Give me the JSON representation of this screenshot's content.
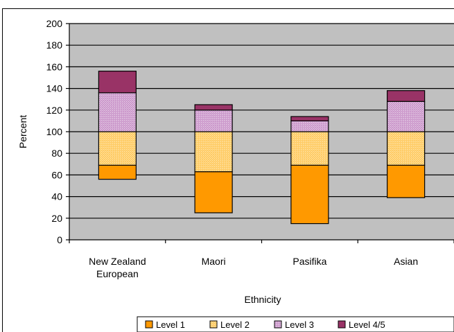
{
  "chart_data": {
    "type": "bar",
    "stacked": true,
    "floating": true,
    "categories": [
      "New Zealand European",
      "Maori",
      "Pasifika",
      "Asian"
    ],
    "category_lines": [
      [
        "New Zealand",
        "European"
      ],
      [
        "Maori"
      ],
      [
        "Pasifika"
      ],
      [
        "Asian"
      ]
    ],
    "base": [
      56,
      25,
      15,
      39
    ],
    "series": [
      {
        "name": "Level 1",
        "values": [
          13,
          38,
          54,
          30
        ],
        "color": "#FF9900"
      },
      {
        "name": "Level 2",
        "values": [
          31,
          37,
          31,
          31
        ],
        "color": "#FFCC66"
      },
      {
        "name": "Level 3",
        "values": [
          36,
          20,
          10,
          28
        ],
        "color": "#CC99CC"
      },
      {
        "name": "Level 4/5",
        "values": [
          20,
          5,
          4,
          10
        ],
        "color": "#993366"
      }
    ],
    "xlabel": "Ethnicity",
    "ylabel": "Percent",
    "ylim": [
      0,
      200
    ],
    "yticks": [
      0,
      20,
      40,
      60,
      80,
      100,
      120,
      140,
      160,
      180,
      200
    ],
    "grid": true,
    "plot_background": "#C0C0C0",
    "legend_position": "bottom"
  }
}
